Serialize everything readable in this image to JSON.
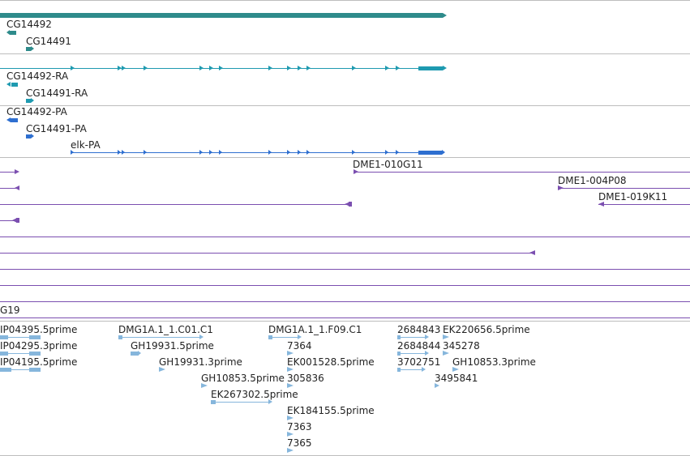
{
  "colors": {
    "gene": "#2e8b8b",
    "transcript": "#1e9ab0",
    "protein": "#2e6fd0",
    "clone": "#7b4fb0",
    "est": "#86b6dc",
    "separator": "#bdbdbd",
    "text": "#222222"
  },
  "gene_track": {
    "labels": [
      "CG14492",
      "CG14491"
    ]
  },
  "transcript_track": {
    "labels": [
      "CG14492-RA",
      "CG14491-RA"
    ]
  },
  "protein_track": {
    "labels": [
      "CG14492-PA",
      "CG14491-PA",
      "elk-PA"
    ]
  },
  "clone_track": {
    "labels": [
      "DME1-010G11",
      "DME1-004P08",
      "DME1-019K11",
      "G19"
    ]
  },
  "est_track": {
    "labels": [
      "IP04395.5prime",
      "IP04295.3prime",
      "IP04195.5prime",
      "DMG1A.1_1.C01.C1",
      "GH19931.5prime",
      "GH19931.3prime",
      "GH10853.5prime",
      "EK267302.5prime",
      "DMG1A.1_1.F09.C1",
      "7364",
      "EK001528.5prime",
      "305836",
      "EK184155.5prime",
      "7363",
      "7365",
      "2684843",
      "EK220656.5prime",
      "2684844",
      "345278",
      "3702751",
      "GH10853.3prime",
      "3495841"
    ]
  }
}
